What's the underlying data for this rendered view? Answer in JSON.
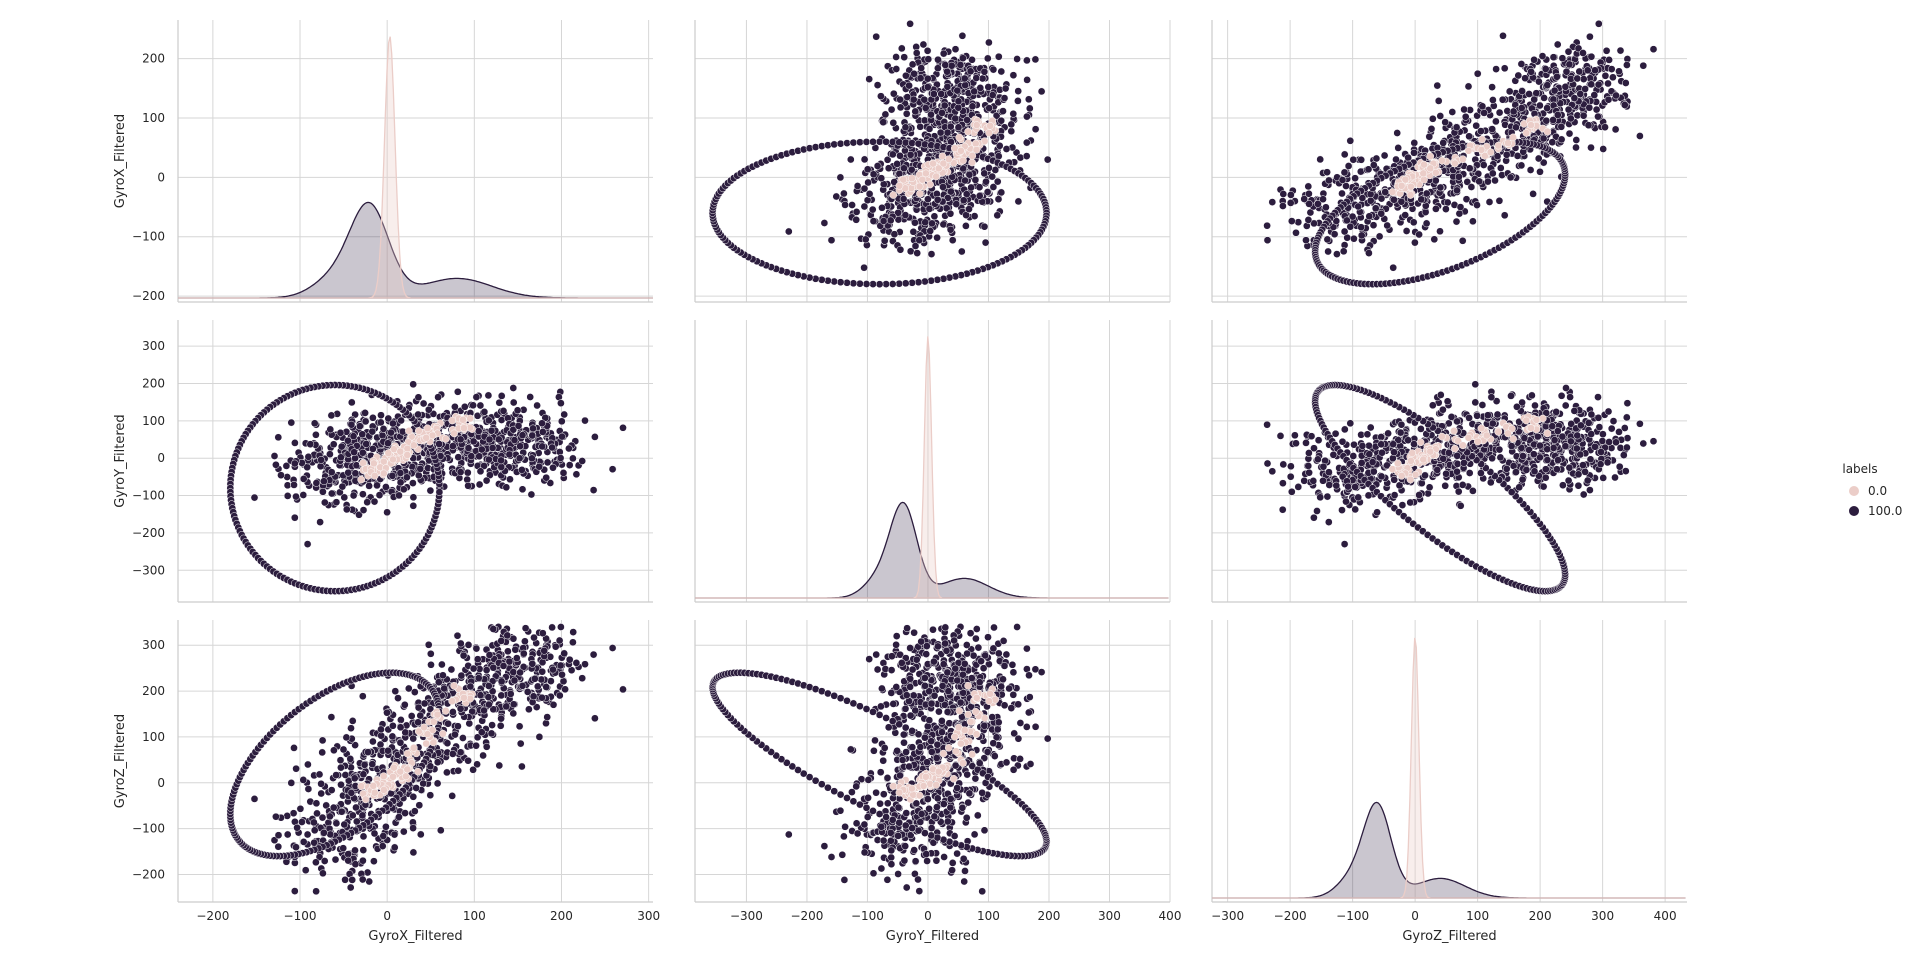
{
  "chart_data": {
    "type": "scatter",
    "kind": "pairplot",
    "hue": "labels",
    "variables": [
      "GyroX_Filtered",
      "GyroY_Filtered",
      "GyroZ_Filtered"
    ],
    "axis_ranges": {
      "GyroX_Filtered": [
        -240,
        305
      ],
      "GyroY_Filtered": [
        -385,
        400
      ],
      "GyroZ_Filtered": [
        -325,
        435
      ]
    },
    "row_ranges": {
      "GyroX_Filtered": [
        -210,
        265
      ],
      "GyroY_Filtered": [
        -385,
        370
      ],
      "GyroZ_Filtered": [
        -260,
        355
      ]
    },
    "ticks": {
      "x": {
        "GyroX_Filtered": [
          -200,
          -100,
          0,
          100,
          200,
          300
        ],
        "GyroY_Filtered": [
          -300,
          -200,
          -100,
          0,
          100,
          200,
          300,
          400
        ],
        "GyroZ_Filtered": [
          -300,
          -200,
          -100,
          0,
          100,
          200,
          300,
          400
        ]
      },
      "y": {
        "GyroX_Filtered": [
          200,
          100,
          0,
          -100,
          -200
        ],
        "GyroY_Filtered": [
          300,
          200,
          100,
          0,
          -100,
          -200,
          -300
        ],
        "GyroZ_Filtered": [
          300,
          200,
          100,
          0,
          -100,
          -200
        ]
      }
    },
    "grid": true,
    "legend": {
      "title": "labels",
      "placement": "right",
      "entries": [
        {
          "name": "0.0",
          "color": "#ebcdc8"
        },
        {
          "name": "100.0",
          "color": "#2c1d3e"
        }
      ]
    },
    "series": [
      {
        "name": "0.0",
        "color": "#ebcdc8",
        "centers": [
          [
            -20,
            -30,
            -20
          ],
          [
            -5,
            -10,
            -5
          ],
          [
            5,
            5,
            10
          ],
          [
            15,
            20,
            30
          ],
          [
            30,
            45,
            60
          ],
          [
            45,
            60,
            110
          ],
          [
            60,
            75,
            150
          ],
          [
            85,
            90,
            190
          ]
        ],
        "kde_peaks": {
          "GyroX_Filtered": [
            3,
            250
          ],
          "GyroY_Filtered": [
            0,
            340
          ],
          "GyroZ_Filtered": [
            0,
            325
          ]
        }
      },
      {
        "name": "100.0",
        "color": "#2c1d3e",
        "centers": [
          [
            -60,
            -30,
            -120
          ],
          [
            -30,
            -20,
            -60
          ],
          [
            -10,
            10,
            0
          ],
          [
            20,
            30,
            60
          ],
          [
            50,
            40,
            120
          ],
          [
            90,
            50,
            180
          ],
          [
            130,
            40,
            230
          ],
          [
            160,
            30,
            260
          ]
        ],
        "kde_peaks": {
          "GyroX_Filtered": [
            -20,
            -35
          ],
          "GyroY_Filtered": [
            -40,
            -15
          ],
          "GyroZ_Filtered": [
            -60,
            -90
          ]
        }
      }
    ]
  }
}
